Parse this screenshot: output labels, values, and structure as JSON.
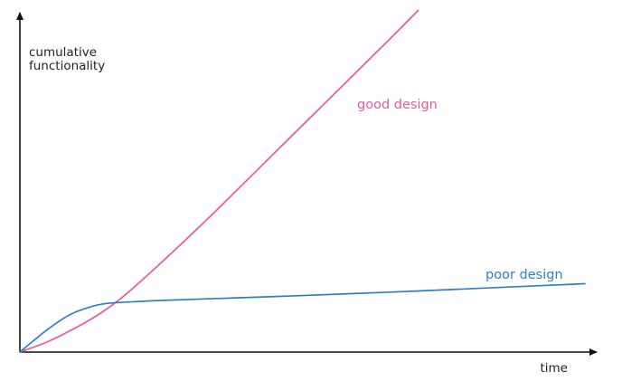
{
  "chart_data": {
    "type": "line",
    "title": "",
    "xlabel": "time",
    "ylabel_lines": [
      "cumulative",
      "functionality"
    ],
    "xlim": [
      0,
      100
    ],
    "ylim": [
      0,
      100
    ],
    "grid": false,
    "legend": "none",
    "series": [
      {
        "name": "good design",
        "color": "#e8589f",
        "x": [
          0,
          5,
          10,
          14,
          18,
          22,
          28,
          35,
          45,
          55,
          65,
          70.5
        ],
        "y": [
          0,
          3.2,
          7.5,
          11.5,
          16.5,
          22.5,
          32,
          43.5,
          60.5,
          77.5,
          94.5,
          104
        ]
      },
      {
        "name": "poor design",
        "color": "#2f7fc2",
        "x": [
          0,
          5,
          9,
          13,
          16,
          20,
          25,
          35,
          50,
          65,
          80,
          92,
          100
        ],
        "y": [
          0,
          7,
          11.5,
          14,
          14.9,
          15.3,
          15.7,
          16.3,
          17.2,
          18.2,
          19.3,
          20.2,
          20.8
        ]
      }
    ]
  }
}
